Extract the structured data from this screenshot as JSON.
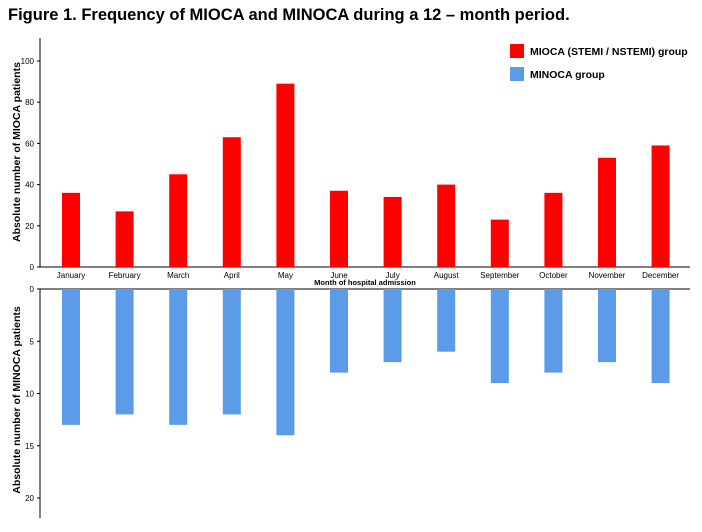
{
  "figure_title": "Figure 1. Frequency of MIOCA and MINOCA during a 12 – month period.",
  "chart_data": {
    "type": "bar",
    "categories": [
      "January",
      "February",
      "March",
      "April",
      "May",
      "June",
      "July",
      "August",
      "September",
      "October",
      "November",
      "December"
    ],
    "xlabel": "Month of hospital admission",
    "series": [
      {
        "name": "MIOCA (STEMI / NSTEMI) group",
        "color": "#ff0000",
        "values": [
          36,
          27,
          45,
          63,
          89,
          37,
          34,
          40,
          23,
          36,
          53,
          59
        ],
        "ylabel": "Absolute number of MIOCA patients",
        "ylim": [
          0,
          110
        ],
        "yticks": [
          0,
          20,
          40,
          60,
          80,
          100
        ],
        "direction": "up"
      },
      {
        "name": "MINOCA group",
        "color": "#5b9be8",
        "values": [
          13,
          12,
          13,
          12,
          14,
          8,
          7,
          6,
          9,
          8,
          7,
          9
        ],
        "ylabel": "Absolute number of MINOCA patients",
        "ylim": [
          0,
          22
        ],
        "yticks": [
          0,
          5,
          10,
          15,
          20
        ],
        "direction": "down"
      }
    ],
    "legend_position": "top-right",
    "grid": false
  }
}
